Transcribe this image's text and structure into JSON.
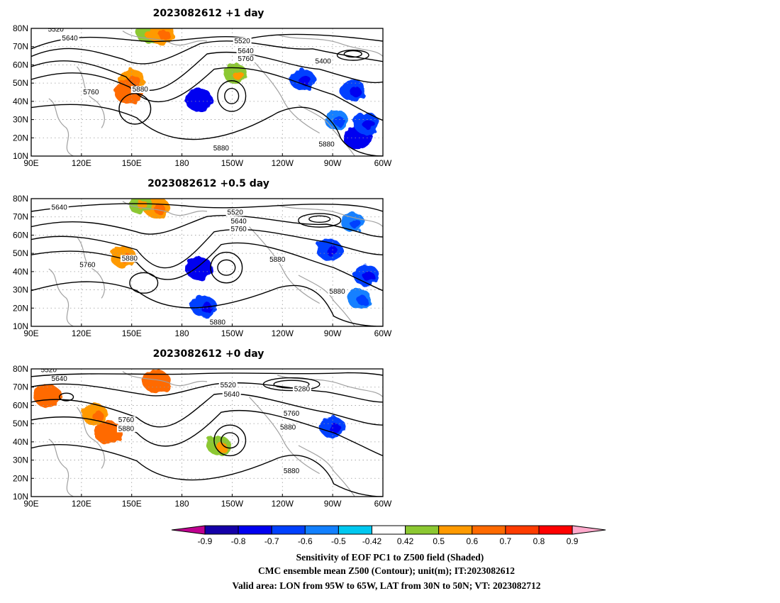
{
  "panels": [
    {
      "title": "2023082612 +1 day",
      "contour_labels": [
        "5520",
        "5640",
        "5760",
        "5880",
        "5520",
        "5640",
        "5760",
        "5400",
        "5880",
        "5880"
      ],
      "shading": [
        {
          "lon": 150,
          "lat": 52,
          "value": 0.6
        },
        {
          "lon": 148,
          "lat": 45,
          "value": 0.7
        },
        {
          "lon": 160,
          "lat": 77,
          "value": 0.5
        },
        {
          "lon": 168,
          "lat": 77,
          "value": 0.6
        },
        {
          "lon": 212,
          "lat": 55,
          "value": 0.5
        },
        {
          "lon": 190,
          "lat": 41,
          "value": -0.7
        },
        {
          "lon": 252,
          "lat": 52,
          "value": -0.6
        },
        {
          "lon": 272,
          "lat": 30,
          "value": -0.5
        },
        {
          "lon": 285,
          "lat": 20,
          "value": -0.7
        },
        {
          "lon": 290,
          "lat": 28,
          "value": -0.6
        },
        {
          "lon": 282,
          "lat": 46,
          "value": -0.6
        }
      ]
    },
    {
      "title": "2023082612 +0.5 day",
      "contour_labels": [
        "5640",
        "5760",
        "5880",
        "5520",
        "5640",
        "5760",
        "5880",
        "5880",
        "5880"
      ],
      "shading": [
        {
          "lon": 165,
          "lat": 75,
          "value": 0.6
        },
        {
          "lon": 155,
          "lat": 77,
          "value": 0.5
        },
        {
          "lon": 145,
          "lat": 48,
          "value": 0.6
        },
        {
          "lon": 190,
          "lat": 42,
          "value": -0.7
        },
        {
          "lon": 193,
          "lat": 21,
          "value": -0.6
        },
        {
          "lon": 268,
          "lat": 52,
          "value": -0.6
        },
        {
          "lon": 282,
          "lat": 67,
          "value": -0.5
        },
        {
          "lon": 290,
          "lat": 38,
          "value": -0.6
        },
        {
          "lon": 286,
          "lat": 25,
          "value": -0.5
        }
      ]
    },
    {
      "title": "2023082612 +0 day",
      "contour_labels": [
        "5520",
        "5640",
        "5760",
        "5880",
        "5520",
        "5640",
        "5760",
        "5880",
        "5280",
        "5880"
      ],
      "shading": [
        {
          "lon": 100,
          "lat": 65,
          "value": 0.7
        },
        {
          "lon": 128,
          "lat": 55,
          "value": 0.6
        },
        {
          "lon": 136,
          "lat": 45,
          "value": 0.7
        },
        {
          "lon": 165,
          "lat": 73,
          "value": 0.7
        },
        {
          "lon": 202,
          "lat": 38,
          "value": 0.5
        },
        {
          "lon": 270,
          "lat": 48,
          "value": -0.6
        }
      ]
    }
  ],
  "map": {
    "lon_range": [
      90,
      300
    ],
    "lat_range": [
      10,
      80
    ],
    "lon_ticks": [
      "90E",
      "120E",
      "150E",
      "180",
      "150W",
      "120W",
      "90W",
      "60W"
    ],
    "lat_ticks": [
      "80N",
      "70N",
      "60N",
      "50N",
      "40N",
      "30N",
      "20N",
      "10N"
    ],
    "grid": "dotted"
  },
  "colorbar": {
    "labels": [
      "-0.9",
      "-0.8",
      "-0.7",
      "-0.6",
      "-0.5",
      "-0.42",
      "0.42",
      "0.5",
      "0.6",
      "0.7",
      "0.8",
      "0.9"
    ],
    "colors": [
      "#c00090",
      "#1400a8",
      "#0000f0",
      "#0040ff",
      "#1280ff",
      "#00c8f0",
      "#ffffff",
      "#8cc832",
      "#ff9a00",
      "#ff6a00",
      "#ff3c00",
      "#ff0000",
      "#ffaacc"
    ]
  },
  "captions": [
    "Sensitivity of EOF PC1 to Z500 field (Shaded)",
    "CMC ensemble mean Z500 (Contour); unit(m); IT:2023082612",
    "Valid area: LON from 95W to 65W, LAT from 30N to 50N; VT: 2023082712"
  ]
}
